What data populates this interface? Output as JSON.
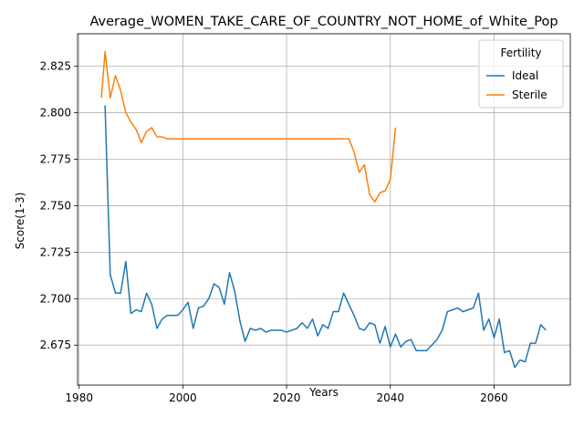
{
  "chart_data": {
    "type": "line",
    "title": "Average_WOMEN_TAKE_CARE_OF_COUNTRY_NOT_HOME_of_White_Pop",
    "xlabel": "Years",
    "ylabel": "Score(1-3)",
    "xlim": [
      1979.7,
      2074.7
    ],
    "ylim": [
      2.6535,
      2.8425
    ],
    "xticks": [
      1980,
      2000,
      2020,
      2040,
      2060
    ],
    "xtick_labels": [
      "1980",
      "2000",
      "2020",
      "2040",
      "2060"
    ],
    "yticks": [
      2.675,
      2.7,
      2.725,
      2.75,
      2.775,
      2.8,
      2.825
    ],
    "ytick_labels": [
      "2.675",
      "2.700",
      "2.725",
      "2.750",
      "2.775",
      "2.800",
      "2.825"
    ],
    "grid": true,
    "legend": {
      "title": "Fertility",
      "position": "top-right",
      "entries": [
        "Ideal",
        "Sterile"
      ]
    },
    "series": [
      {
        "name": "Ideal",
        "color": "#1f77b4",
        "x": [
          1985,
          1986,
          1987,
          1988,
          1989,
          1990,
          1991,
          1992,
          1993,
          1994,
          1995,
          1996,
          1997,
          1998,
          1999,
          2000,
          2001,
          2002,
          2003,
          2004,
          2005,
          2006,
          2007,
          2008,
          2009,
          2010,
          2011,
          2012,
          2013,
          2014,
          2015,
          2016,
          2017,
          2018,
          2019,
          2020,
          2021,
          2022,
          2023,
          2024,
          2025,
          2026,
          2027,
          2028,
          2029,
          2030,
          2031,
          2032,
          2033,
          2034,
          2035,
          2036,
          2037,
          2038,
          2039,
          2040,
          2041,
          2042,
          2043,
          2044,
          2045,
          2046,
          2047,
          2048,
          2049,
          2050,
          2051,
          2052,
          2053,
          2054,
          2055,
          2056,
          2057,
          2058,
          2059,
          2060,
          2061,
          2062,
          2063,
          2064,
          2065,
          2066,
          2067,
          2068,
          2069,
          2070
        ],
        "y": [
          2.804,
          2.713,
          2.703,
          2.703,
          2.72,
          2.692,
          2.694,
          2.693,
          2.703,
          2.697,
          2.684,
          2.689,
          2.691,
          2.691,
          2.691,
          2.694,
          2.698,
          2.684,
          2.695,
          2.696,
          2.7,
          2.708,
          2.706,
          2.697,
          2.714,
          2.704,
          2.688,
          2.677,
          2.684,
          2.683,
          2.684,
          2.682,
          2.683,
          2.683,
          2.683,
          2.682,
          2.683,
          2.684,
          2.687,
          2.684,
          2.689,
          2.68,
          2.686,
          2.684,
          2.693,
          2.693,
          2.703,
          2.697,
          2.691,
          2.684,
          2.683,
          2.687,
          2.686,
          2.676,
          2.685,
          2.674,
          2.681,
          2.674,
          2.677,
          2.678,
          2.672,
          2.672,
          2.672,
          2.675,
          2.678,
          2.683,
          2.693,
          2.694,
          2.695,
          2.693,
          2.694,
          2.695,
          2.703,
          2.683,
          2.689,
          2.679,
          2.689,
          2.671,
          2.672,
          2.663,
          2.667,
          2.666,
          2.676,
          2.676,
          2.686,
          2.683
        ]
      },
      {
        "name": "Sterile",
        "color": "#ff7f0e",
        "x": [
          1984.3,
          1985,
          1986,
          1987,
          1988,
          1989,
          1990,
          1991,
          1992,
          1993,
          1994,
          1995,
          1996,
          1997,
          1998,
          1999,
          2000,
          2010,
          2020,
          2030,
          2032,
          2033,
          2034,
          2035,
          2036,
          2037,
          2038,
          2039,
          2040,
          2041
        ],
        "y": [
          2.808,
          2.833,
          2.808,
          2.82,
          2.812,
          2.8,
          2.795,
          2.791,
          2.784,
          2.79,
          2.792,
          2.787,
          2.787,
          2.786,
          2.786,
          2.786,
          2.786,
          2.786,
          2.786,
          2.786,
          2.786,
          2.779,
          2.768,
          2.772,
          2.756,
          2.752,
          2.757,
          2.758,
          2.764,
          2.792
        ]
      }
    ]
  }
}
